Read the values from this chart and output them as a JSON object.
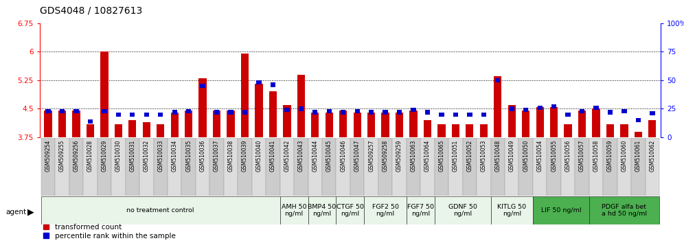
{
  "title": "GDS4048 / 10827613",
  "ylim_left": [
    3.75,
    6.75
  ],
  "ylim_right": [
    0,
    100
  ],
  "yticks_left": [
    3.75,
    4.5,
    5.25,
    6.0,
    6.75
  ],
  "yticks_right": [
    0,
    25,
    50,
    75,
    100
  ],
  "ytick_labels_left": [
    "3.75",
    "4.5",
    "5.25",
    "6",
    "6.75"
  ],
  "ytick_labels_right": [
    "0",
    "25",
    "50",
    "75",
    "100%"
  ],
  "samples": [
    "GSM509254",
    "GSM509255",
    "GSM509256",
    "GSM510028",
    "GSM510029",
    "GSM510030",
    "GSM510031",
    "GSM510032",
    "GSM510033",
    "GSM510034",
    "GSM510035",
    "GSM510036",
    "GSM510037",
    "GSM510038",
    "GSM510039",
    "GSM510040",
    "GSM510041",
    "GSM510042",
    "GSM510043",
    "GSM510044",
    "GSM510045",
    "GSM510046",
    "GSM510047",
    "GSM509257",
    "GSM509258",
    "GSM509259",
    "GSM510063",
    "GSM510064",
    "GSM510065",
    "GSM510051",
    "GSM510052",
    "GSM510053",
    "GSM510048",
    "GSM510049",
    "GSM510050",
    "GSM510054",
    "GSM510055",
    "GSM510056",
    "GSM510057",
    "GSM510058",
    "GSM510059",
    "GSM510060",
    "GSM510061",
    "GSM510062"
  ],
  "red_values": [
    4.45,
    4.45,
    4.45,
    4.1,
    6.0,
    4.1,
    4.2,
    4.15,
    4.1,
    4.4,
    4.45,
    5.3,
    4.45,
    4.45,
    5.95,
    5.15,
    4.95,
    4.6,
    5.4,
    4.4,
    4.4,
    4.45,
    4.4,
    4.4,
    4.4,
    4.4,
    4.45,
    4.2,
    4.1,
    4.1,
    4.1,
    4.1,
    5.35,
    4.6,
    4.45,
    4.55,
    4.55,
    4.1,
    4.45,
    4.5,
    4.1,
    4.1,
    3.9,
    4.2
  ],
  "blue_values": [
    23,
    23,
    23,
    14,
    23,
    20,
    20,
    20,
    20,
    22,
    23,
    45,
    22,
    22,
    22,
    48,
    46,
    24,
    25,
    22,
    23,
    22,
    23,
    22,
    22,
    22,
    24,
    22,
    20,
    20,
    20,
    20,
    50,
    25,
    24,
    26,
    27,
    20,
    23,
    26,
    22,
    23,
    15,
    21
  ],
  "agent_groups": [
    {
      "label": "no treatment control",
      "start": 0,
      "end": 17,
      "color": "#e8f5e8"
    },
    {
      "label": "AMH 50\nng/ml",
      "start": 17,
      "end": 19,
      "color": "#e8f5e8"
    },
    {
      "label": "BMP4 50\nng/ml",
      "start": 19,
      "end": 21,
      "color": "#e8f5e8"
    },
    {
      "label": "CTGF 50\nng/ml",
      "start": 21,
      "end": 23,
      "color": "#e8f5e8"
    },
    {
      "label": "FGF2 50\nng/ml",
      "start": 23,
      "end": 26,
      "color": "#e8f5e8"
    },
    {
      "label": "FGF7 50\nng/ml",
      "start": 26,
      "end": 28,
      "color": "#e8f5e8"
    },
    {
      "label": "GDNF 50\nng/ml",
      "start": 28,
      "end": 32,
      "color": "#e8f5e8"
    },
    {
      "label": "KITLG 50\nng/ml",
      "start": 32,
      "end": 35,
      "color": "#e8f5e8"
    },
    {
      "label": "LIF 50 ng/ml",
      "start": 35,
      "end": 39,
      "color": "#4caf50"
    },
    {
      "label": "PDGF alfa bet\na hd 50 ng/ml",
      "start": 39,
      "end": 44,
      "color": "#4caf50"
    }
  ],
  "bar_color_red": "#cc0000",
  "bar_color_blue": "#0000cc",
  "bg_color": "#ffffff",
  "title_fontsize": 10,
  "tick_fontsize": 7.5,
  "sample_label_fontsize": 5.5,
  "agent_fontsize": 6.8,
  "legend_fontsize": 7.5
}
